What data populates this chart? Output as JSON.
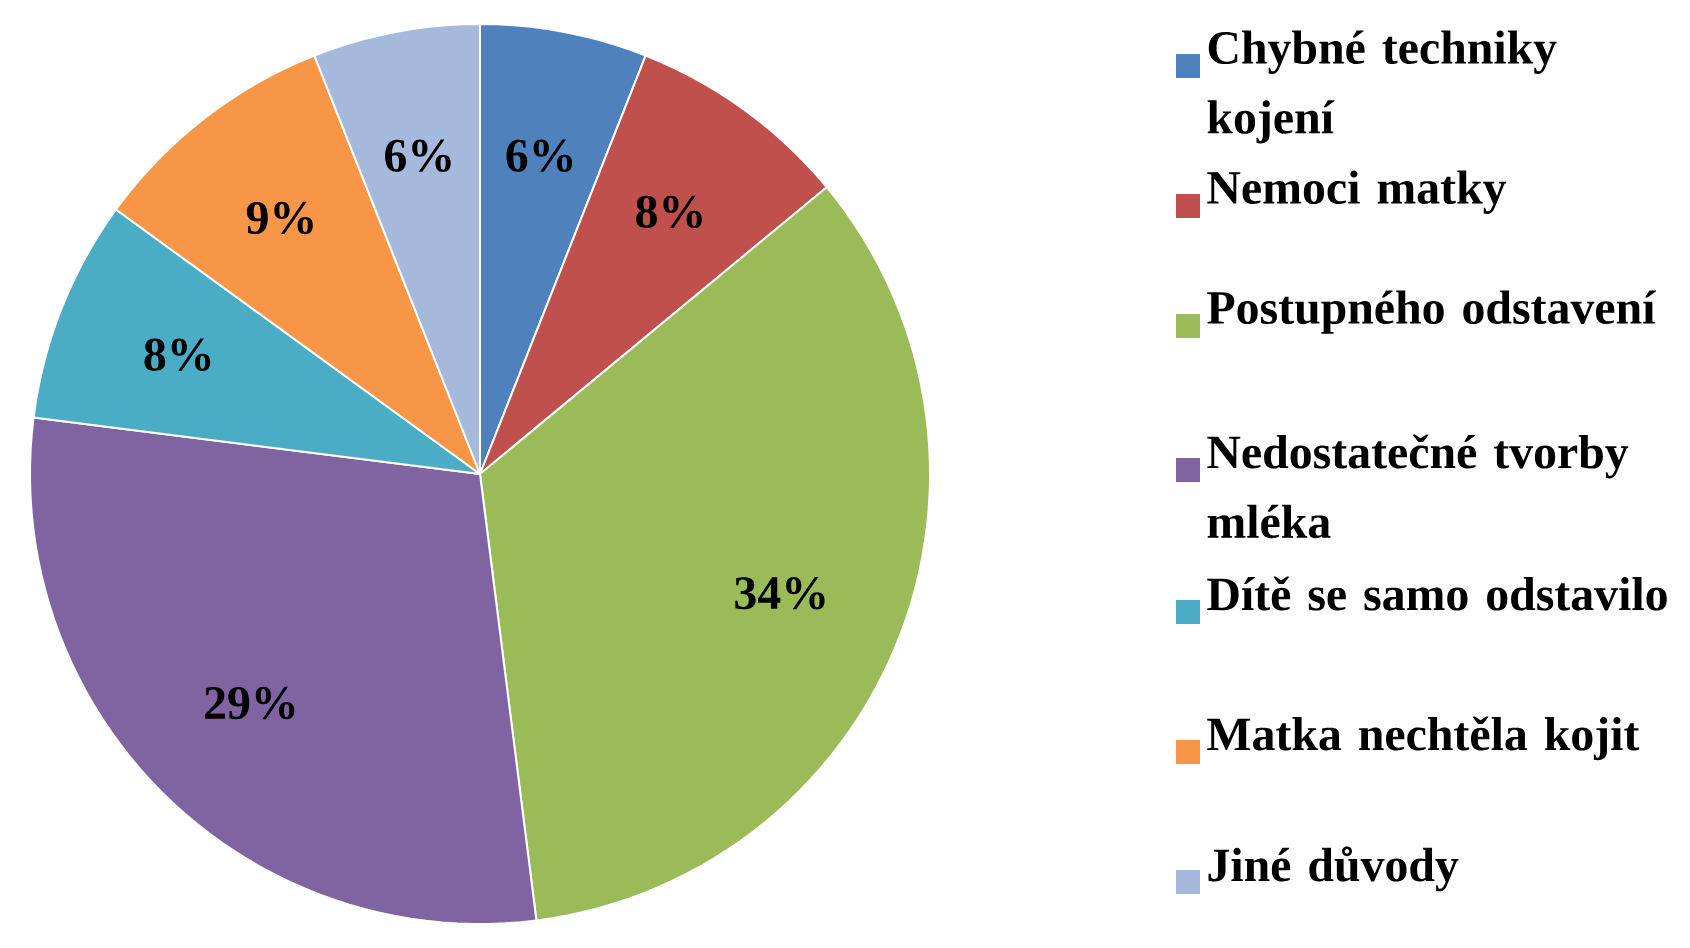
{
  "chart_data": {
    "type": "pie",
    "categories": [
      "Chybné techniky kojení",
      "Nemoci matky",
      "Postupného odstavení",
      "Nedostatečné tvorby mléka",
      "Dítě se samo odstavilo",
      "Matka nechtěla kojit",
      "Jiné důvody"
    ],
    "values": [
      6,
      8,
      34,
      29,
      8,
      9,
      6
    ],
    "colors": [
      "#4f81bd",
      "#c0504d",
      "#9bbb59",
      "#8064a2",
      "#4bacc6",
      "#f79646",
      "#a5b9dd"
    ],
    "value_labels": [
      "6%",
      "8%",
      "34%",
      "29%",
      "8%",
      "9%",
      "6%"
    ],
    "legend": "right"
  }
}
